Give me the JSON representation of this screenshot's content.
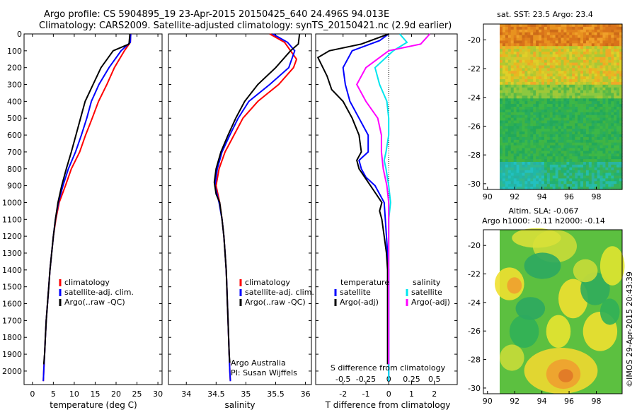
{
  "header": {
    "line1": "Argo profile: CS 5904895_19 23-Apr-2015 20150425_640 24.496S 94.013E",
    "line2": "Climatology: CARS2009. Satellite-adjusted climatology: synTS_20150421.nc (2.9d earlier)"
  },
  "colors": {
    "climatology": "#ff0000",
    "satellite": "#0000ff",
    "argo": "#000000",
    "cyan": "#00e5ee",
    "magenta": "#ff00ff"
  },
  "chart_data": [
    {
      "type": "line",
      "xlabel": "temperature (deg C)",
      "ylabel": "",
      "xlim": [
        -2,
        31
      ],
      "ylim": [
        2080,
        0
      ],
      "xticks": [
        "0",
        "5",
        "10",
        "15",
        "20",
        "25",
        "30"
      ],
      "yticks": [
        "0",
        "100",
        "200",
        "300",
        "400",
        "500",
        "600",
        "700",
        "800",
        "900",
        "1000",
        "1100",
        "1200",
        "1300",
        "1400",
        "1500",
        "1600",
        "1700",
        "1800",
        "1900",
        "2000"
      ],
      "legend": {
        "placement": "lower-center",
        "items": [
          "climatology",
          "satellite-adj. clim.",
          "Argo(..raw -QC)"
        ]
      },
      "series": [
        {
          "name": "climatology",
          "points": [
            [
              23.5,
              0
            ],
            [
              23.4,
              50
            ],
            [
              22,
              100
            ],
            [
              19.6,
              200
            ],
            [
              17.8,
              300
            ],
            [
              15.8,
              400
            ],
            [
              14.3,
              500
            ],
            [
              12.7,
              600
            ],
            [
              11.3,
              700
            ],
            [
              9.3,
              800
            ],
            [
              7.9,
              900
            ],
            [
              6.4,
              1000
            ],
            [
              5.6,
              1100
            ],
            [
              5.0,
              1200
            ],
            [
              4.6,
              1300
            ],
            [
              4.2,
              1400
            ],
            [
              3.9,
              1500
            ],
            [
              3.6,
              1600
            ],
            [
              3.3,
              1700
            ],
            [
              3.1,
              1800
            ],
            [
              2.9,
              1900
            ],
            [
              2.7,
              2000
            ],
            [
              2.6,
              2060
            ]
          ]
        },
        {
          "name": "satellite-adj. clim.",
          "points": [
            [
              23.5,
              0
            ],
            [
              23.4,
              50
            ],
            [
              21.2,
              100
            ],
            [
              18.3,
              200
            ],
            [
              15.9,
              300
            ],
            [
              14.1,
              400
            ],
            [
              13.0,
              500
            ],
            [
              11.7,
              600
            ],
            [
              10.3,
              700
            ],
            [
              8.6,
              800
            ],
            [
              7.3,
              900
            ],
            [
              6.2,
              1000
            ],
            [
              5.5,
              1100
            ],
            [
              5.0,
              1200
            ],
            [
              4.6,
              1300
            ],
            [
              4.2,
              1400
            ],
            [
              3.9,
              1500
            ],
            [
              3.6,
              1600
            ],
            [
              3.3,
              1700
            ],
            [
              3.1,
              1800
            ],
            [
              2.9,
              1900
            ],
            [
              2.7,
              2000
            ],
            [
              2.6,
              2060
            ]
          ]
        },
        {
          "name": "Argo(..raw -QC)",
          "points": [
            [
              23.3,
              0
            ],
            [
              23.1,
              60
            ],
            [
              19.3,
              100
            ],
            [
              16.4,
              200
            ],
            [
              14.5,
              300
            ],
            [
              12.6,
              400
            ],
            [
              11.5,
              500
            ],
            [
              10.4,
              600
            ],
            [
              9.3,
              700
            ],
            [
              8.1,
              800
            ],
            [
              7.0,
              900
            ],
            [
              6.1,
              1000
            ],
            [
              5.5,
              1100
            ],
            [
              5.0,
              1200
            ],
            [
              4.6,
              1300
            ],
            [
              4.2,
              1400
            ],
            [
              3.9,
              1500
            ],
            [
              3.6,
              1600
            ],
            [
              3.3,
              1700
            ],
            [
              3.1,
              1800
            ],
            [
              2.9,
              1900
            ],
            [
              2.7,
              1960
            ]
          ]
        }
      ]
    },
    {
      "type": "line",
      "xlabel": "salinity",
      "xlim": [
        33.7,
        36.1
      ],
      "ylim": [
        2080,
        0
      ],
      "xticks": [
        "34",
        "34.5",
        "35",
        "35.5",
        "36"
      ],
      "legend": {
        "placement": "lower-center",
        "items": [
          "climatology",
          "satellite-adj. clim.",
          "Argo(..raw -QC)"
        ]
      },
      "annotation": [
        "Argo Australia",
        "PI: Susan Wijffels"
      ],
      "series": [
        {
          "name": "climatology",
          "points": [
            [
              35.4,
              0
            ],
            [
              35.65,
              50
            ],
            [
              35.85,
              150
            ],
            [
              35.8,
              200
            ],
            [
              35.55,
              300
            ],
            [
              35.2,
              400
            ],
            [
              34.95,
              500
            ],
            [
              34.8,
              600
            ],
            [
              34.65,
              700
            ],
            [
              34.55,
              800
            ],
            [
              34.5,
              900
            ],
            [
              34.56,
              1000
            ],
            [
              34.6,
              1100
            ],
            [
              34.63,
              1200
            ],
            [
              34.65,
              1300
            ],
            [
              34.67,
              1400
            ],
            [
              34.68,
              1500
            ],
            [
              34.69,
              1600
            ],
            [
              34.7,
              1700
            ],
            [
              34.71,
              1800
            ],
            [
              34.72,
              1900
            ],
            [
              34.73,
              2000
            ],
            [
              34.74,
              2060
            ]
          ]
        },
        {
          "name": "satellite-adj. clim.",
          "points": [
            [
              35.45,
              0
            ],
            [
              35.7,
              50
            ],
            [
              35.82,
              100
            ],
            [
              35.72,
              200
            ],
            [
              35.4,
              300
            ],
            [
              35.05,
              400
            ],
            [
              34.87,
              500
            ],
            [
              34.73,
              600
            ],
            [
              34.6,
              700
            ],
            [
              34.52,
              800
            ],
            [
              34.48,
              900
            ],
            [
              34.55,
              1000
            ],
            [
              34.6,
              1100
            ],
            [
              34.63,
              1200
            ],
            [
              34.65,
              1300
            ],
            [
              34.67,
              1400
            ],
            [
              34.68,
              1500
            ],
            [
              34.69,
              1600
            ],
            [
              34.7,
              1700
            ],
            [
              34.71,
              1800
            ],
            [
              34.72,
              1900
            ],
            [
              34.73,
              2000
            ],
            [
              34.74,
              2060
            ]
          ]
        },
        {
          "name": "Argo(..raw -QC)",
          "points": [
            [
              35.9,
              0
            ],
            [
              35.88,
              60
            ],
            [
              35.75,
              100
            ],
            [
              35.5,
              200
            ],
            [
              35.2,
              300
            ],
            [
              34.98,
              400
            ],
            [
              34.83,
              500
            ],
            [
              34.7,
              600
            ],
            [
              34.58,
              700
            ],
            [
              34.5,
              800
            ],
            [
              34.47,
              880
            ],
            [
              34.5,
              950
            ],
            [
              34.56,
              1000
            ],
            [
              34.6,
              1100
            ],
            [
              34.63,
              1200
            ],
            [
              34.65,
              1300
            ],
            [
              34.67,
              1400
            ],
            [
              34.68,
              1500
            ],
            [
              34.69,
              1600
            ],
            [
              34.7,
              1700
            ],
            [
              34.71,
              1800
            ],
            [
              34.72,
              1900
            ],
            [
              34.73,
              1950
            ]
          ]
        }
      ]
    },
    {
      "type": "line",
      "xlabel": "T difference from climatology",
      "xlabel_top": "S difference from climatology",
      "xlim": [
        -3.2,
        3.0
      ],
      "ylim": [
        2080,
        0
      ],
      "xticks_T": [
        "-2",
        "-1",
        "0",
        "1",
        "2"
      ],
      "xticks_S": [
        "-0.5",
        "-0.25",
        "0",
        "0.25",
        "0.5"
      ],
      "legend": {
        "placement": "lower",
        "headers": [
          "temperature",
          "salinity"
        ],
        "items": [
          "satellite",
          "Argo(-adj)",
          "satellite",
          "Argo(-adj)"
        ]
      },
      "series": [
        {
          "name": "temperature satellite",
          "points": [
            [
              0,
              0
            ],
            [
              -0.4,
              40
            ],
            [
              -1.6,
              100
            ],
            [
              -2.0,
              200
            ],
            [
              -1.9,
              300
            ],
            [
              -1.7,
              400
            ],
            [
              -1.3,
              500
            ],
            [
              -0.9,
              600
            ],
            [
              -0.9,
              700
            ],
            [
              -1.3,
              750
            ],
            [
              -1.2,
              800
            ],
            [
              -1.0,
              850
            ],
            [
              -0.6,
              900
            ],
            [
              -0.2,
              1000
            ],
            [
              -0.15,
              1100
            ],
            [
              -0.1,
              1200
            ],
            [
              -0.05,
              1300
            ],
            [
              0,
              1400
            ],
            [
              0,
              1600
            ],
            [
              0,
              2060
            ]
          ]
        },
        {
          "name": "temperature Argo(-adj)",
          "points": [
            [
              0,
              0
            ],
            [
              -1.2,
              60
            ],
            [
              -2.6,
              100
            ],
            [
              -3.1,
              140
            ],
            [
              -2.7,
              250
            ],
            [
              -2.5,
              330
            ],
            [
              -2.0,
              400
            ],
            [
              -1.6,
              500
            ],
            [
              -1.3,
              600
            ],
            [
              -1.2,
              700
            ],
            [
              -1.4,
              750
            ],
            [
              -1.3,
              800
            ],
            [
              -0.8,
              900
            ],
            [
              -0.3,
              1000
            ],
            [
              -0.4,
              1050
            ],
            [
              -0.3,
              1100
            ],
            [
              -0.2,
              1200
            ],
            [
              -0.1,
              1300
            ],
            [
              -0.05,
              1400
            ],
            [
              -0.05,
              1700
            ],
            [
              -0.05,
              1900
            ],
            [
              -0.05,
              1960
            ]
          ]
        },
        {
          "name": "salinity satellite",
          "points": [
            [
              0.12,
              0
            ],
            [
              0.2,
              50
            ],
            [
              0.05,
              100
            ],
            [
              -0.15,
              200
            ],
            [
              -0.1,
              300
            ],
            [
              -0.02,
              400
            ],
            [
              0.0,
              500
            ],
            [
              0.0,
              600
            ],
            [
              -0.03,
              700
            ],
            [
              -0.05,
              750
            ],
            [
              -0.03,
              800
            ],
            [
              0.0,
              900
            ],
            [
              0.02,
              1000
            ],
            [
              0.0,
              1100
            ],
            [
              0.0,
              2060
            ]
          ]
        },
        {
          "name": "salinity Argo(-adj)",
          "points": [
            [
              0.45,
              0
            ],
            [
              0.35,
              60
            ],
            [
              0.0,
              100
            ],
            [
              -0.25,
              200
            ],
            [
              -0.35,
              300
            ],
            [
              -0.25,
              400
            ],
            [
              -0.12,
              500
            ],
            [
              -0.08,
              600
            ],
            [
              -0.08,
              700
            ],
            [
              -0.06,
              800
            ],
            [
              -0.02,
              900
            ],
            [
              0.0,
              1000
            ],
            [
              0.0,
              1960
            ]
          ]
        }
      ]
    }
  ],
  "maps": [
    {
      "title": "sat. SST: 23.5  Argo: 23.4",
      "xticks": [
        "90",
        "92",
        "94",
        "96",
        "98"
      ],
      "yticks": [
        "-20",
        "-22",
        "-24",
        "-26",
        "-28",
        "-30"
      ],
      "xlim": [
        89.7,
        99.9
      ],
      "ylim": [
        -30.4,
        -18.9
      ]
    },
    {
      "title1": "Altim. SLA: -0.067",
      "title2": "Argo h1000: -0.11 h2000: -0.14",
      "xticks": [
        "90",
        "92",
        "94",
        "96",
        "98"
      ],
      "yticks": [
        "-20",
        "-22",
        "-24",
        "-26",
        "-28",
        "-30"
      ],
      "xlim": [
        89.7,
        99.9
      ],
      "ylim": [
        -30.4,
        -18.9
      ]
    }
  ],
  "credit": "©IMOS 29-Apr-2015 20:43:39"
}
